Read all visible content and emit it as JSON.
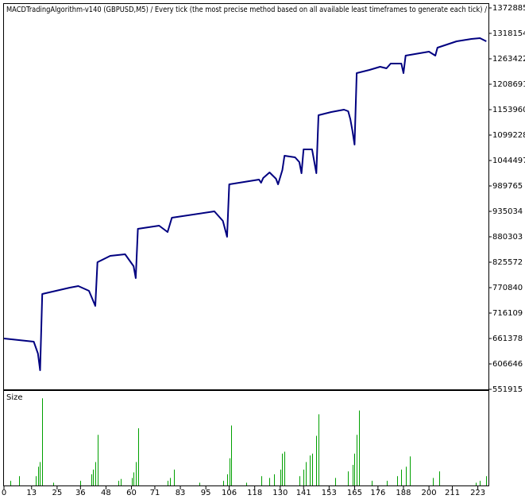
{
  "chart_data": [
    {
      "type": "line",
      "title": "MACDTradingAlgorithm-v140 (GBPUSD,M5) / Every tick (the most precise method based on all available least timeframes to generate each tick) /",
      "color": "#000080",
      "x": [
        0,
        14,
        16,
        17,
        18,
        31,
        35,
        40,
        43,
        44,
        50,
        57,
        61,
        62,
        63,
        73,
        77,
        79,
        99,
        103,
        105,
        106,
        120,
        121,
        122,
        125,
        128,
        129,
        131,
        132,
        137,
        139,
        140,
        141,
        145,
        147,
        148,
        154,
        160,
        162,
        163,
        164,
        165,
        166,
        172,
        177,
        180,
        182,
        187,
        188,
        189,
        200,
        203,
        204,
        213,
        220,
        224,
        227
      ],
      "values": [
        661400,
        654500,
        628900,
        592900,
        757200,
        770800,
        774200,
        764000,
        731500,
        825600,
        839200,
        842700,
        817000,
        791400,
        897400,
        904200,
        890600,
        921300,
        935000,
        914500,
        880300,
        993200,
        1003400,
        996600,
        1006900,
        1018800,
        1005100,
        993200,
        1024000,
        1054700,
        1051300,
        1041100,
        1017100,
        1068400,
        1068400,
        1017100,
        1142000,
        1148800,
        1154000,
        1150500,
        1133400,
        1107800,
        1078700,
        1232600,
        1239400,
        1246300,
        1242900,
        1253100,
        1253100,
        1232600,
        1270200,
        1278800,
        1270200,
        1287300,
        1301000,
        1306200,
        1307900,
        1301000
      ],
      "xlim": [
        0,
        228
      ],
      "ylim": [
        551915,
        1372885
      ],
      "yticks": [
        551915,
        606646,
        661378,
        716109,
        770840,
        825572,
        880303,
        935034,
        989765,
        1044497,
        1099228,
        1153960,
        1208691,
        1263422,
        1318154,
        1372885
      ]
    },
    {
      "type": "bar",
      "title": "Size",
      "color": "#00a000",
      "x": [
        3,
        7,
        15,
        16,
        17,
        18,
        23,
        36,
        41,
        42,
        43,
        44,
        54,
        55,
        60,
        61,
        62,
        63,
        77,
        78,
        80,
        92,
        103,
        105,
        106,
        107,
        114,
        121,
        125,
        127,
        130,
        131,
        132,
        139,
        141,
        142,
        144,
        145,
        147,
        148,
        156,
        162,
        164,
        165,
        166,
        167,
        173,
        180,
        185,
        187,
        189,
        191,
        202,
        205,
        222,
        224,
        227
      ],
      "values": [
        0.05,
        0.1,
        0.1,
        0.2,
        0.25,
        0.93,
        0.03,
        0.05,
        0.12,
        0.17,
        0.25,
        0.54,
        0.05,
        0.07,
        0.08,
        0.14,
        0.25,
        0.61,
        0.05,
        0.08,
        0.17,
        0.03,
        0.05,
        0.12,
        0.29,
        0.64,
        0.03,
        0.1,
        0.08,
        0.12,
        0.17,
        0.34,
        0.36,
        0.1,
        0.17,
        0.25,
        0.32,
        0.34,
        0.53,
        0.76,
        0.08,
        0.15,
        0.22,
        0.34,
        0.54,
        0.8,
        0.05,
        0.05,
        0.1,
        0.17,
        0.2,
        0.31,
        0.08,
        0.15,
        0.03,
        0.05,
        0.1
      ],
      "xlim": [
        0,
        228
      ],
      "ylim": [
        0,
        1
      ],
      "xticks": [
        0,
        13,
        25,
        36,
        48,
        60,
        71,
        83,
        95,
        106,
        118,
        130,
        141,
        153,
        165,
        176,
        188,
        200,
        211,
        223
      ]
    }
  ]
}
